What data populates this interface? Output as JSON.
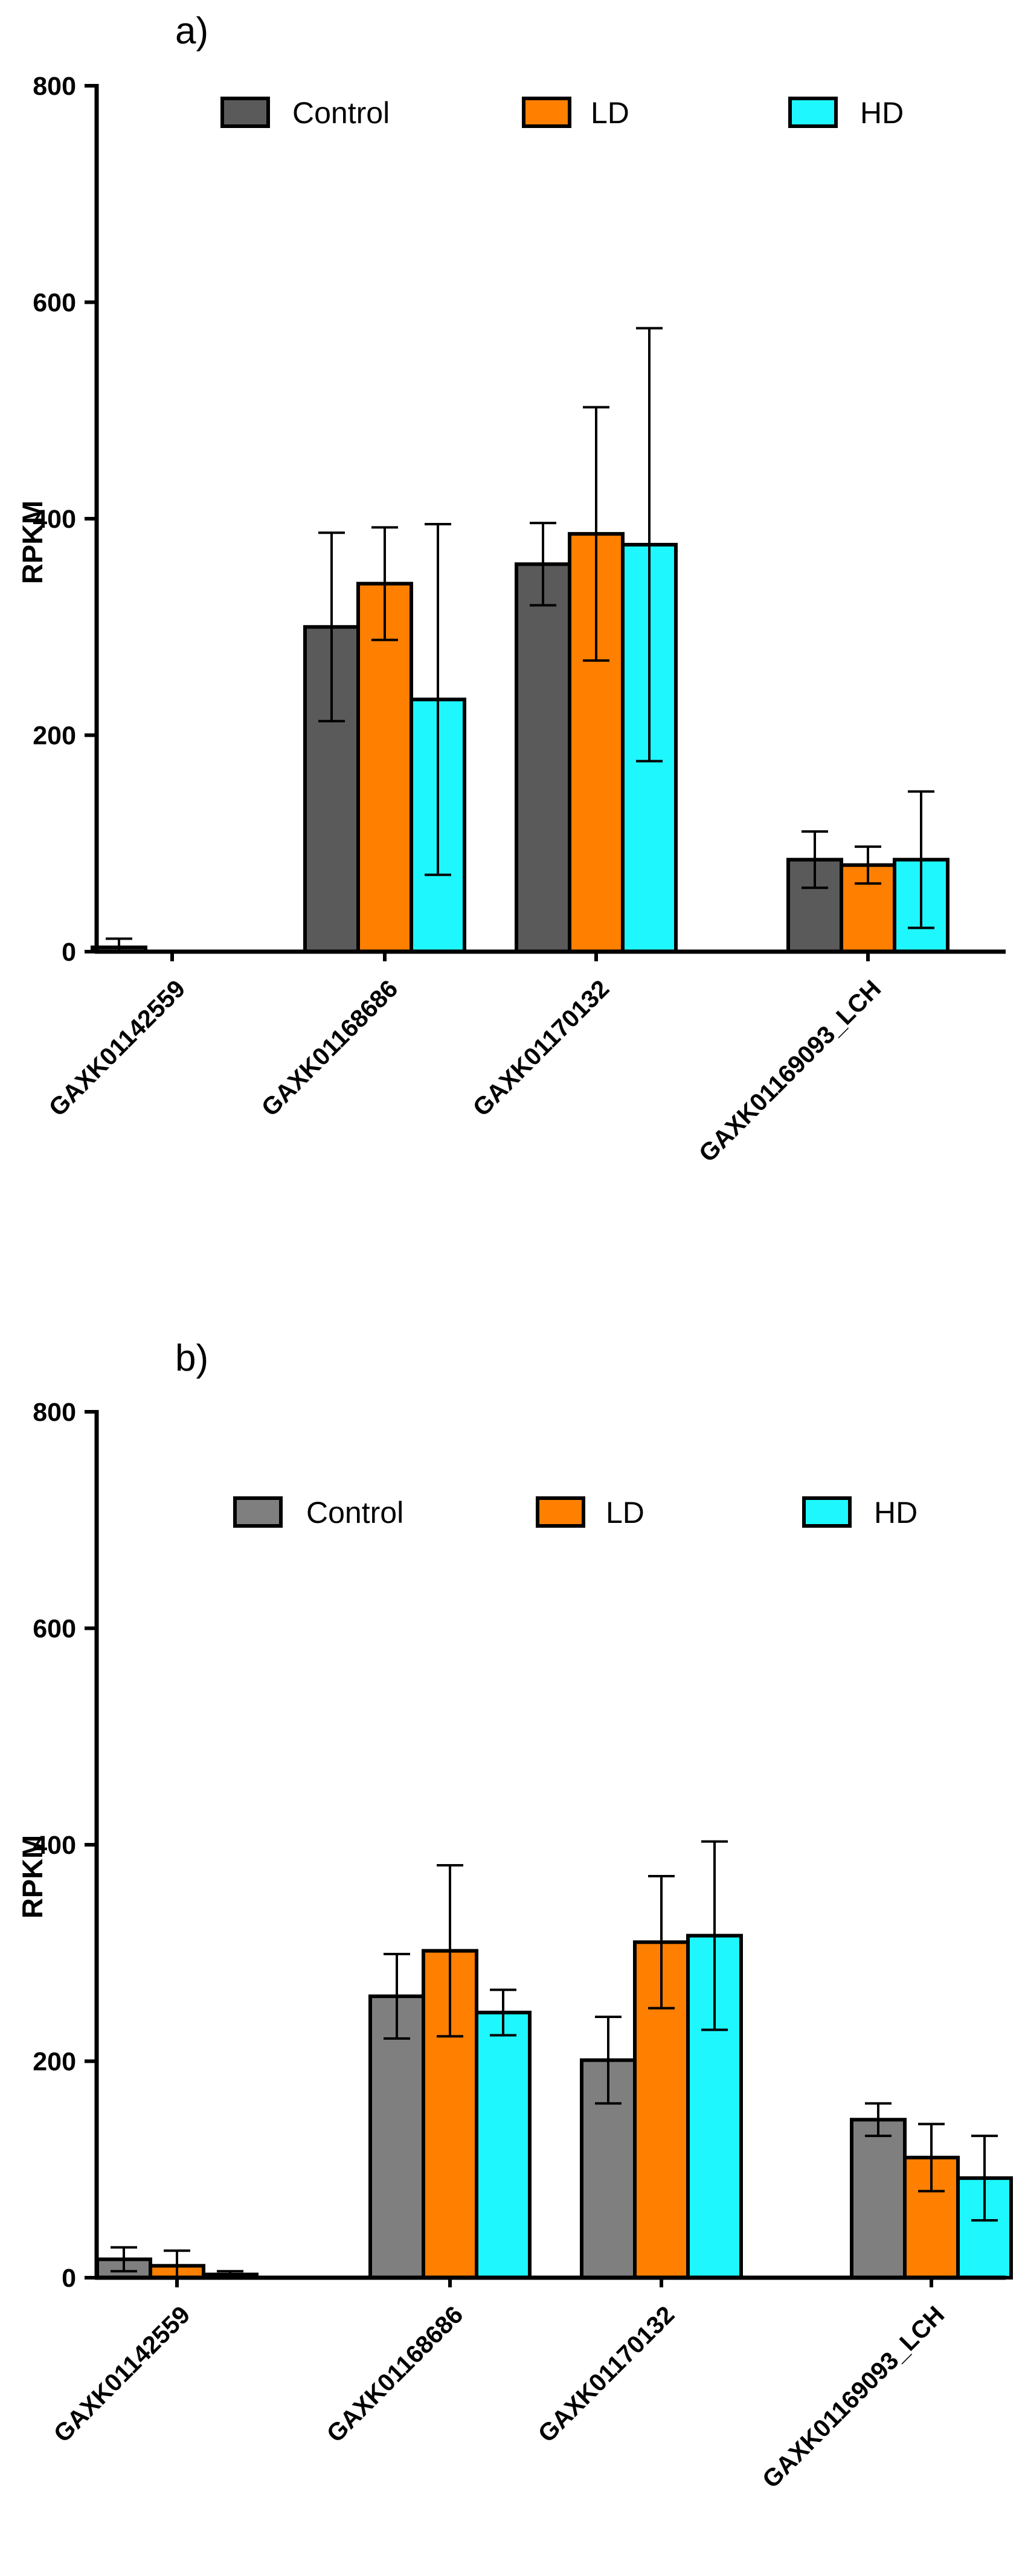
{
  "colors": {
    "axis": "#000000",
    "panel_a": {
      "Control": "#5a5a5a",
      "LD": "#ff7f00",
      "HD": "#1ff7ff"
    },
    "panel_b": {
      "Control": "#7f7f7f",
      "LD": "#ff7f00",
      "HD": "#1ff7ff"
    }
  },
  "chart_data": [
    {
      "type": "bar",
      "panel_label": "a)",
      "title": "",
      "xlabel": "",
      "ylabel": "RPKM",
      "ylim": [
        0,
        800
      ],
      "yticks": [
        "0",
        "200",
        "400",
        "600",
        "800"
      ],
      "grid": false,
      "legend": "top",
      "categories": [
        "GAXK01142559",
        "GAXK01168686",
        "GAXK01170132",
        "GAXK01169093_LCH"
      ],
      "series": [
        {
          "name": "Control",
          "values": [
            4,
            300,
            358,
            85
          ],
          "errors": [
            8,
            87,
            38,
            26
          ]
        },
        {
          "name": "LD",
          "values": [
            0,
            340,
            386,
            80
          ],
          "errors": [
            0,
            52,
            117,
            17
          ]
        },
        {
          "name": "HD",
          "values": [
            0,
            233,
            376,
            85
          ],
          "errors": [
            0,
            162,
            200,
            63
          ]
        }
      ]
    },
    {
      "type": "bar",
      "panel_label": "b)",
      "title": "",
      "xlabel": "",
      "ylabel": "RPKM",
      "ylim": [
        0,
        800
      ],
      "yticks": [
        "0",
        "200",
        "400",
        "600",
        "800"
      ],
      "grid": false,
      "legend": "top",
      "categories": [
        "GAXK01142559",
        "GAXK01168686",
        "GAXK01170132",
        "GAXK01169093_LCH"
      ],
      "series": [
        {
          "name": "Control",
          "values": [
            17,
            260,
            201,
            146
          ],
          "errors": [
            11,
            39,
            40,
            15
          ]
        },
        {
          "name": "LD",
          "values": [
            11,
            302,
            310,
            111
          ],
          "errors": [
            14,
            79,
            61,
            31
          ]
        },
        {
          "name": "HD",
          "values": [
            3,
            245,
            316,
            92
          ],
          "errors": [
            3,
            21,
            87,
            39
          ]
        }
      ]
    }
  ]
}
